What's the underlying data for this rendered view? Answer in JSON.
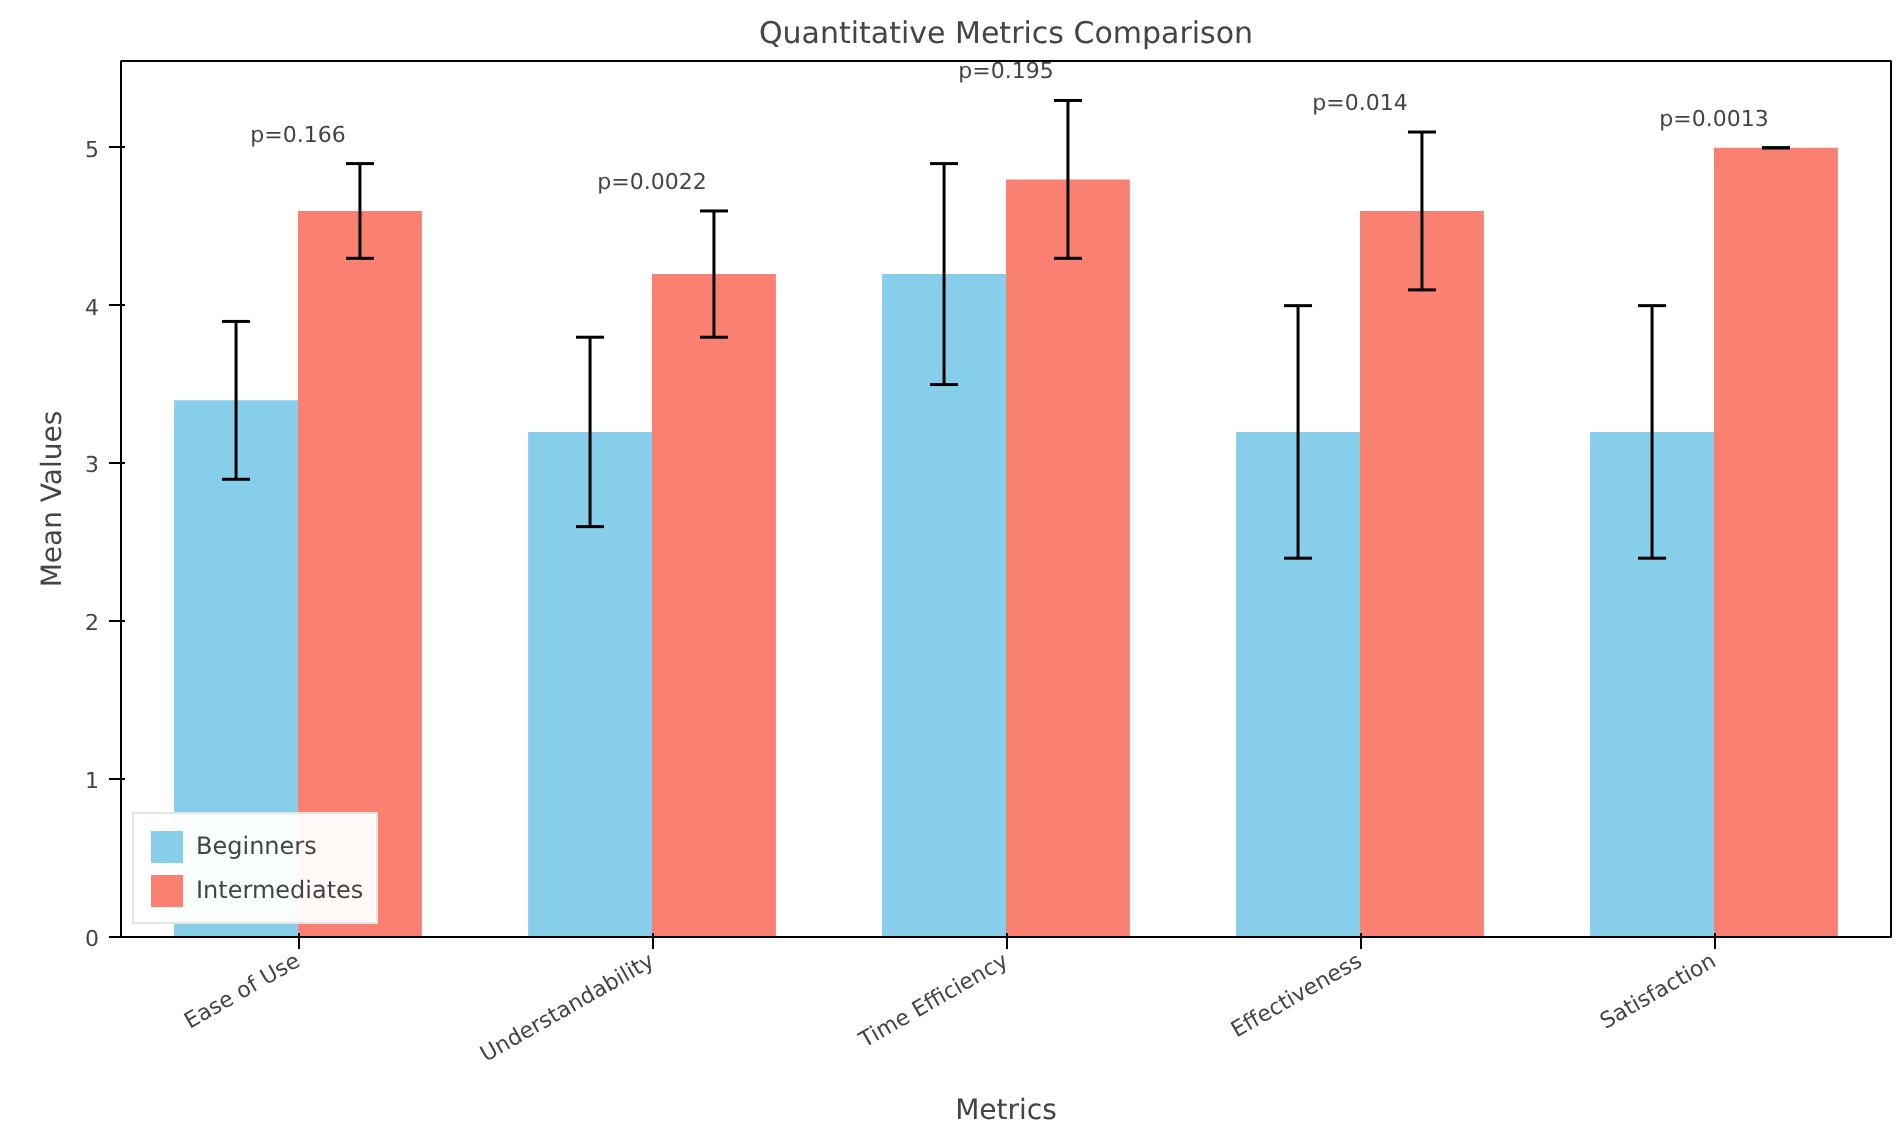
{
  "chart_data": {
    "type": "bar",
    "title": "Quantitative Metrics Comparison",
    "xlabel": "Metrics",
    "ylabel": "Mean Values",
    "categories": [
      "Ease of Use",
      "Understandability",
      "Time Efficiency",
      "Effectiveness",
      "Satisfaction"
    ],
    "series": [
      {
        "name": "Beginners",
        "color": "#87ceeb",
        "values": [
          3.4,
          3.2,
          4.2,
          3.2,
          3.2
        ],
        "errors": [
          0.5,
          0.6,
          0.7,
          0.8,
          0.8
        ]
      },
      {
        "name": "Intermediates",
        "color": "#fa8072",
        "values": [
          4.6,
          4.2,
          4.8,
          4.6,
          5.0
        ],
        "errors": [
          0.3,
          0.4,
          0.5,
          0.5,
          0
        ]
      }
    ],
    "ylim": [
      0,
      5.55
    ],
    "yticks": [
      0,
      1,
      2,
      3,
      4,
      5
    ],
    "grid": false,
    "legend": "bottom left",
    "annotations": [
      "p=0.166",
      "p=0.0022",
      "p=0.195",
      "p=0.014",
      "p=0.0013"
    ]
  }
}
